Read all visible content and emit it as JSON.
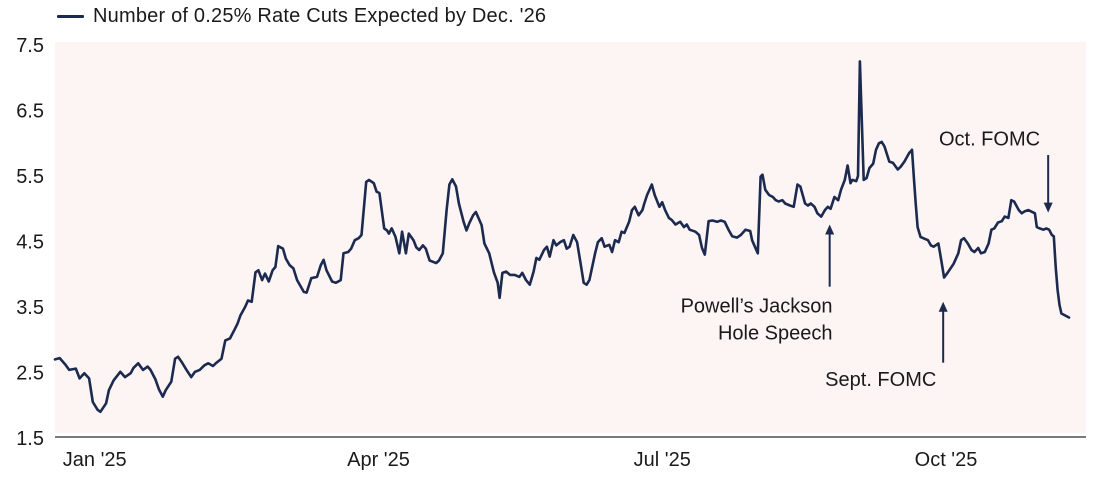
{
  "legend": {
    "label": "Number of 0.25% Rate Cuts Expected by Dec. '26"
  },
  "colors": {
    "line": "#1b2a4e",
    "plot_bg": "#fdf4f4",
    "axis": "#7a7a7a",
    "text": "#1a1a1a"
  },
  "chart_data": {
    "type": "line",
    "title": "Number of 0.25% Rate Cuts Expected by Dec. '26",
    "xlabel": "",
    "ylabel": "",
    "x_unit": "months since Jan 1 '25",
    "xlim": [
      -0.42,
      10.48
    ],
    "ylim": [
      1.5,
      7.5
    ],
    "grid": false,
    "legend_position": "top-left",
    "y_ticks": [
      7.5,
      6.5,
      5.5,
      4.5,
      3.5,
      2.5,
      1.5
    ],
    "x_ticks": [
      {
        "pos": 0,
        "label": "Jan '25"
      },
      {
        "pos": 3,
        "label": "Apr '25"
      },
      {
        "pos": 6,
        "label": "Jul '25"
      },
      {
        "pos": 9,
        "label": "Oct '25"
      }
    ],
    "series": [
      {
        "name": "Number of 0.25% Rate Cuts Expected by Dec. '26",
        "points": [
          [
            -0.42,
            2.7
          ],
          [
            -0.37,
            2.72
          ],
          [
            -0.31,
            2.62
          ],
          [
            -0.27,
            2.54
          ],
          [
            -0.2,
            2.56
          ],
          [
            -0.16,
            2.41
          ],
          [
            -0.11,
            2.49
          ],
          [
            -0.06,
            2.41
          ],
          [
            -0.02,
            2.05
          ],
          [
            0.03,
            1.93
          ],
          [
            0.06,
            1.9
          ],
          [
            0.12,
            2.03
          ],
          [
            0.15,
            2.23
          ],
          [
            0.2,
            2.38
          ],
          [
            0.27,
            2.51
          ],
          [
            0.32,
            2.43
          ],
          [
            0.38,
            2.49
          ],
          [
            0.41,
            2.57
          ],
          [
            0.46,
            2.64
          ],
          [
            0.51,
            2.54
          ],
          [
            0.56,
            2.59
          ],
          [
            0.59,
            2.54
          ],
          [
            0.64,
            2.4
          ],
          [
            0.68,
            2.24
          ],
          [
            0.72,
            2.13
          ],
          [
            0.75,
            2.23
          ],
          [
            0.81,
            2.36
          ],
          [
            0.85,
            2.71
          ],
          [
            0.88,
            2.74
          ],
          [
            0.92,
            2.66
          ],
          [
            0.97,
            2.54
          ],
          [
            1.02,
            2.43
          ],
          [
            1.06,
            2.51
          ],
          [
            1.11,
            2.54
          ],
          [
            1.16,
            2.61
          ],
          [
            1.2,
            2.64
          ],
          [
            1.25,
            2.6
          ],
          [
            1.28,
            2.64
          ],
          [
            1.34,
            2.71
          ],
          [
            1.38,
            2.99
          ],
          [
            1.43,
            3.02
          ],
          [
            1.48,
            3.16
          ],
          [
            1.51,
            3.25
          ],
          [
            1.54,
            3.37
          ],
          [
            1.59,
            3.5
          ],
          [
            1.62,
            3.6
          ],
          [
            1.66,
            3.58
          ],
          [
            1.7,
            4.03
          ],
          [
            1.73,
            4.06
          ],
          [
            1.77,
            3.91
          ],
          [
            1.8,
            4.01
          ],
          [
            1.84,
            3.89
          ],
          [
            1.88,
            4.06
          ],
          [
            1.91,
            4.11
          ],
          [
            1.94,
            4.43
          ],
          [
            1.99,
            4.39
          ],
          [
            2.02,
            4.24
          ],
          [
            2.06,
            4.14
          ],
          [
            2.1,
            4.09
          ],
          [
            2.14,
            3.91
          ],
          [
            2.21,
            3.73
          ],
          [
            2.24,
            3.72
          ],
          [
            2.29,
            3.94
          ],
          [
            2.35,
            3.96
          ],
          [
            2.39,
            4.14
          ],
          [
            2.42,
            4.22
          ],
          [
            2.45,
            4.06
          ],
          [
            2.51,
            3.89
          ],
          [
            2.55,
            3.87
          ],
          [
            2.6,
            3.91
          ],
          [
            2.63,
            4.32
          ],
          [
            2.68,
            4.34
          ],
          [
            2.71,
            4.39
          ],
          [
            2.75,
            4.52
          ],
          [
            2.79,
            4.55
          ],
          [
            2.82,
            4.6
          ],
          [
            2.87,
            5.41
          ],
          [
            2.9,
            5.44
          ],
          [
            2.95,
            5.39
          ],
          [
            2.98,
            5.26
          ],
          [
            3.01,
            5.24
          ],
          [
            3.06,
            4.7
          ],
          [
            3.09,
            4.67
          ],
          [
            3.11,
            4.62
          ],
          [
            3.14,
            4.7
          ],
          [
            3.18,
            4.57
          ],
          [
            3.22,
            4.32
          ],
          [
            3.25,
            4.65
          ],
          [
            3.29,
            4.32
          ],
          [
            3.32,
            4.62
          ],
          [
            3.37,
            4.52
          ],
          [
            3.4,
            4.41
          ],
          [
            3.43,
            4.37
          ],
          [
            3.47,
            4.44
          ],
          [
            3.5,
            4.39
          ],
          [
            3.54,
            4.21
          ],
          [
            3.61,
            4.17
          ],
          [
            3.64,
            4.21
          ],
          [
            3.68,
            4.32
          ],
          [
            3.72,
            4.98
          ],
          [
            3.75,
            5.37
          ],
          [
            3.78,
            5.45
          ],
          [
            3.82,
            5.34
          ],
          [
            3.85,
            5.08
          ],
          [
            3.9,
            4.8
          ],
          [
            3.93,
            4.67
          ],
          [
            3.96,
            4.78
          ],
          [
            4.0,
            4.9
          ],
          [
            4.03,
            4.95
          ],
          [
            4.09,
            4.75
          ],
          [
            4.12,
            4.47
          ],
          [
            4.17,
            4.32
          ],
          [
            4.22,
            4.03
          ],
          [
            4.26,
            3.87
          ],
          [
            4.28,
            3.64
          ],
          [
            4.31,
            4.02
          ],
          [
            4.35,
            4.04
          ],
          [
            4.39,
            3.99
          ],
          [
            4.44,
            3.99
          ],
          [
            4.49,
            3.96
          ],
          [
            4.52,
            4.02
          ],
          [
            4.56,
            3.91
          ],
          [
            4.6,
            3.84
          ],
          [
            4.64,
            4.04
          ],
          [
            4.67,
            4.25
          ],
          [
            4.7,
            4.22
          ],
          [
            4.75,
            4.37
          ],
          [
            4.78,
            4.42
          ],
          [
            4.81,
            4.27
          ],
          [
            4.85,
            4.52
          ],
          [
            4.88,
            4.44
          ],
          [
            4.92,
            4.49
          ],
          [
            4.96,
            4.52
          ],
          [
            4.99,
            4.39
          ],
          [
            5.02,
            4.42
          ],
          [
            5.06,
            4.6
          ],
          [
            5.1,
            4.49
          ],
          [
            5.13,
            4.22
          ],
          [
            5.17,
            3.87
          ],
          [
            5.2,
            3.84
          ],
          [
            5.23,
            3.91
          ],
          [
            5.29,
            4.32
          ],
          [
            5.32,
            4.49
          ],
          [
            5.36,
            4.55
          ],
          [
            5.39,
            4.42
          ],
          [
            5.44,
            4.45
          ],
          [
            5.47,
            4.34
          ],
          [
            5.5,
            4.52
          ],
          [
            5.54,
            4.49
          ],
          [
            5.57,
            4.65
          ],
          [
            5.6,
            4.63
          ],
          [
            5.65,
            4.8
          ],
          [
            5.68,
            4.98
          ],
          [
            5.71,
            5.03
          ],
          [
            5.75,
            4.9
          ],
          [
            5.79,
            4.98
          ],
          [
            5.81,
            5.08
          ],
          [
            5.84,
            5.21
          ],
          [
            5.89,
            5.37
          ],
          [
            5.92,
            5.21
          ],
          [
            5.97,
            5.03
          ],
          [
            6.0,
            5.1
          ],
          [
            6.03,
            4.98
          ],
          [
            6.07,
            4.86
          ],
          [
            6.1,
            4.83
          ],
          [
            6.14,
            4.76
          ],
          [
            6.19,
            4.8
          ],
          [
            6.23,
            4.72
          ],
          [
            6.26,
            4.76
          ],
          [
            6.29,
            4.68
          ],
          [
            6.35,
            4.65
          ],
          [
            6.39,
            4.6
          ],
          [
            6.42,
            4.4
          ],
          [
            6.45,
            4.3
          ],
          [
            6.49,
            4.81
          ],
          [
            6.53,
            4.82
          ],
          [
            6.58,
            4.8
          ],
          [
            6.62,
            4.82
          ],
          [
            6.66,
            4.8
          ],
          [
            6.7,
            4.68
          ],
          [
            6.74,
            4.58
          ],
          [
            6.79,
            4.56
          ],
          [
            6.83,
            4.6
          ],
          [
            6.88,
            4.68
          ],
          [
            6.93,
            4.66
          ],
          [
            6.95,
            4.52
          ],
          [
            6.98,
            4.42
          ],
          [
            7.01,
            4.32
          ],
          [
            7.04,
            5.49
          ],
          [
            7.06,
            5.52
          ],
          [
            7.09,
            5.29
          ],
          [
            7.13,
            5.21
          ],
          [
            7.17,
            5.18
          ],
          [
            7.2,
            5.13
          ],
          [
            7.23,
            5.11
          ],
          [
            7.27,
            5.13
          ],
          [
            7.3,
            5.08
          ],
          [
            7.35,
            5.05
          ],
          [
            7.39,
            5.03
          ],
          [
            7.43,
            5.37
          ],
          [
            7.46,
            5.34
          ],
          [
            7.51,
            5.08
          ],
          [
            7.54,
            5.05
          ],
          [
            7.57,
            5.08
          ],
          [
            7.61,
            5.03
          ],
          [
            7.64,
            4.93
          ],
          [
            7.68,
            4.88
          ],
          [
            7.72,
            4.98
          ],
          [
            7.75,
            5.03
          ],
          [
            7.78,
            5.0
          ],
          [
            7.82,
            5.18
          ],
          [
            7.86,
            5.13
          ],
          [
            7.89,
            5.29
          ],
          [
            7.93,
            5.44
          ],
          [
            7.96,
            5.66
          ],
          [
            7.99,
            5.39
          ],
          [
            8.01,
            5.44
          ],
          [
            8.05,
            5.42
          ],
          [
            8.07,
            5.5
          ],
          [
            8.09,
            7.25
          ],
          [
            8.13,
            5.44
          ],
          [
            8.16,
            5.47
          ],
          [
            8.19,
            5.62
          ],
          [
            8.23,
            5.69
          ],
          [
            8.26,
            5.9
          ],
          [
            8.29,
            6.0
          ],
          [
            8.32,
            6.02
          ],
          [
            8.35,
            5.95
          ],
          [
            8.4,
            5.72
          ],
          [
            8.44,
            5.7
          ],
          [
            8.49,
            5.6
          ],
          [
            8.52,
            5.64
          ],
          [
            8.56,
            5.72
          ],
          [
            8.61,
            5.85
          ],
          [
            8.64,
            5.9
          ],
          [
            8.66,
            5.47
          ],
          [
            8.68,
            5.08
          ],
          [
            8.7,
            4.72
          ],
          [
            8.73,
            4.57
          ],
          [
            8.76,
            4.55
          ],
          [
            8.81,
            4.52
          ],
          [
            8.84,
            4.44
          ],
          [
            8.87,
            4.42
          ],
          [
            8.92,
            4.47
          ],
          [
            8.95,
            4.21
          ],
          [
            8.98,
            3.95
          ],
          [
            9.02,
            4.03
          ],
          [
            9.08,
            4.16
          ],
          [
            9.13,
            4.32
          ],
          [
            9.16,
            4.52
          ],
          [
            9.19,
            4.55
          ],
          [
            9.23,
            4.47
          ],
          [
            9.27,
            4.37
          ],
          [
            9.3,
            4.34
          ],
          [
            9.34,
            4.4
          ],
          [
            9.37,
            4.32
          ],
          [
            9.41,
            4.34
          ],
          [
            9.45,
            4.47
          ],
          [
            9.48,
            4.68
          ],
          [
            9.51,
            4.7
          ],
          [
            9.55,
            4.79
          ],
          [
            9.59,
            4.81
          ],
          [
            9.62,
            4.88
          ],
          [
            9.66,
            4.86
          ],
          [
            9.69,
            5.13
          ],
          [
            9.72,
            5.11
          ],
          [
            9.77,
            4.98
          ],
          [
            9.8,
            4.93
          ],
          [
            9.83,
            4.96
          ],
          [
            9.87,
            4.98
          ],
          [
            9.9,
            4.96
          ],
          [
            9.94,
            4.93
          ],
          [
            9.96,
            4.72
          ],
          [
            9.99,
            4.7
          ],
          [
            10.03,
            4.68
          ],
          [
            10.06,
            4.7
          ],
          [
            10.09,
            4.68
          ],
          [
            10.12,
            4.6
          ],
          [
            10.14,
            4.58
          ],
          [
            10.16,
            4.11
          ],
          [
            10.18,
            3.76
          ],
          [
            10.2,
            3.53
          ],
          [
            10.22,
            3.4
          ],
          [
            10.26,
            3.37
          ],
          [
            10.3,
            3.34
          ]
        ]
      }
    ],
    "annotations": [
      {
        "id": "jackson-hole",
        "lines": [
          "Powell’s Jackson",
          "Hole Speech"
        ],
        "align": "right",
        "text_x": 7.8,
        "text_y": 3.52,
        "arrow": {
          "x": 7.77,
          "from_y": 3.81,
          "to_y": 4.76
        }
      },
      {
        "id": "sept-fomc",
        "lines": [
          "Sept. FOMC"
        ],
        "align": "center",
        "text_x": 8.31,
        "text_y": 2.4,
        "arrow": {
          "x": 8.97,
          "from_y": 2.65,
          "to_y": 3.58
        }
      },
      {
        "id": "oct-fomc",
        "lines": [
          "Oct. FOMC"
        ],
        "align": "center",
        "text_x": 9.46,
        "text_y": 6.07,
        "arrow": {
          "x": 10.08,
          "from_y": 5.82,
          "to_y": 4.94
        }
      }
    ]
  }
}
